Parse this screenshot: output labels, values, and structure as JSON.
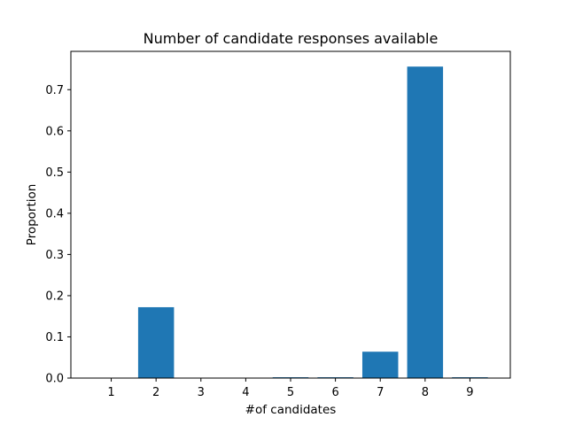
{
  "chart_data": {
    "type": "bar",
    "title": "Number of candidate responses available",
    "xlabel": "#of candidates",
    "ylabel": "Proportion",
    "categories": [
      "1",
      "2",
      "3",
      "4",
      "5",
      "6",
      "7",
      "8",
      "9"
    ],
    "values": [
      0.0,
      0.172,
      0.0,
      0.0,
      0.002,
      0.002,
      0.064,
      0.756,
      0.002
    ],
    "ylim": [
      0,
      0.793
    ],
    "yticks": [
      0.0,
      0.1,
      0.2,
      0.3,
      0.4,
      0.5,
      0.6,
      0.7
    ],
    "ytick_labels": [
      "0.0",
      "0.1",
      "0.2",
      "0.3",
      "0.4",
      "0.5",
      "0.6",
      "0.7"
    ],
    "grid": false,
    "bar_color": "#1f77b4"
  }
}
